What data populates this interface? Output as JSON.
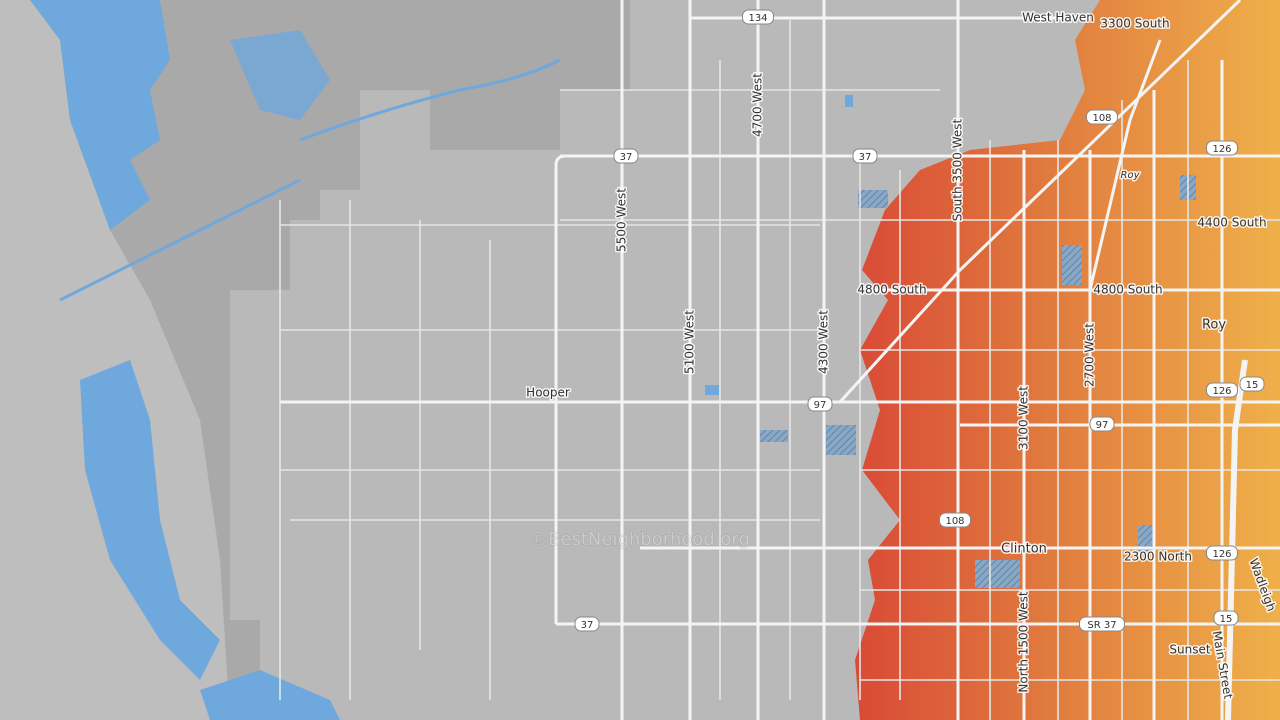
{
  "places": [
    "West Haven",
    "Roy",
    "Roy",
    "Hooper",
    "Clinton",
    "Sunset"
  ],
  "roads": [
    "3300 South",
    "4700 West",
    "4400 South",
    "5500 West",
    "South 3500 West",
    "4800 South",
    "4800 South",
    "5100 West",
    "4300 West",
    "2700 West",
    "3100 West",
    "2300 North",
    "North 1500 West",
    "Main Street",
    "Wadleigh"
  ],
  "shields": [
    "134",
    "108",
    "126",
    "37",
    "37",
    "126",
    "97",
    "15",
    "97",
    "108",
    "126",
    "15",
    "37",
    "SR 37"
  ],
  "watermark": "©BestNeighborhood.org"
}
